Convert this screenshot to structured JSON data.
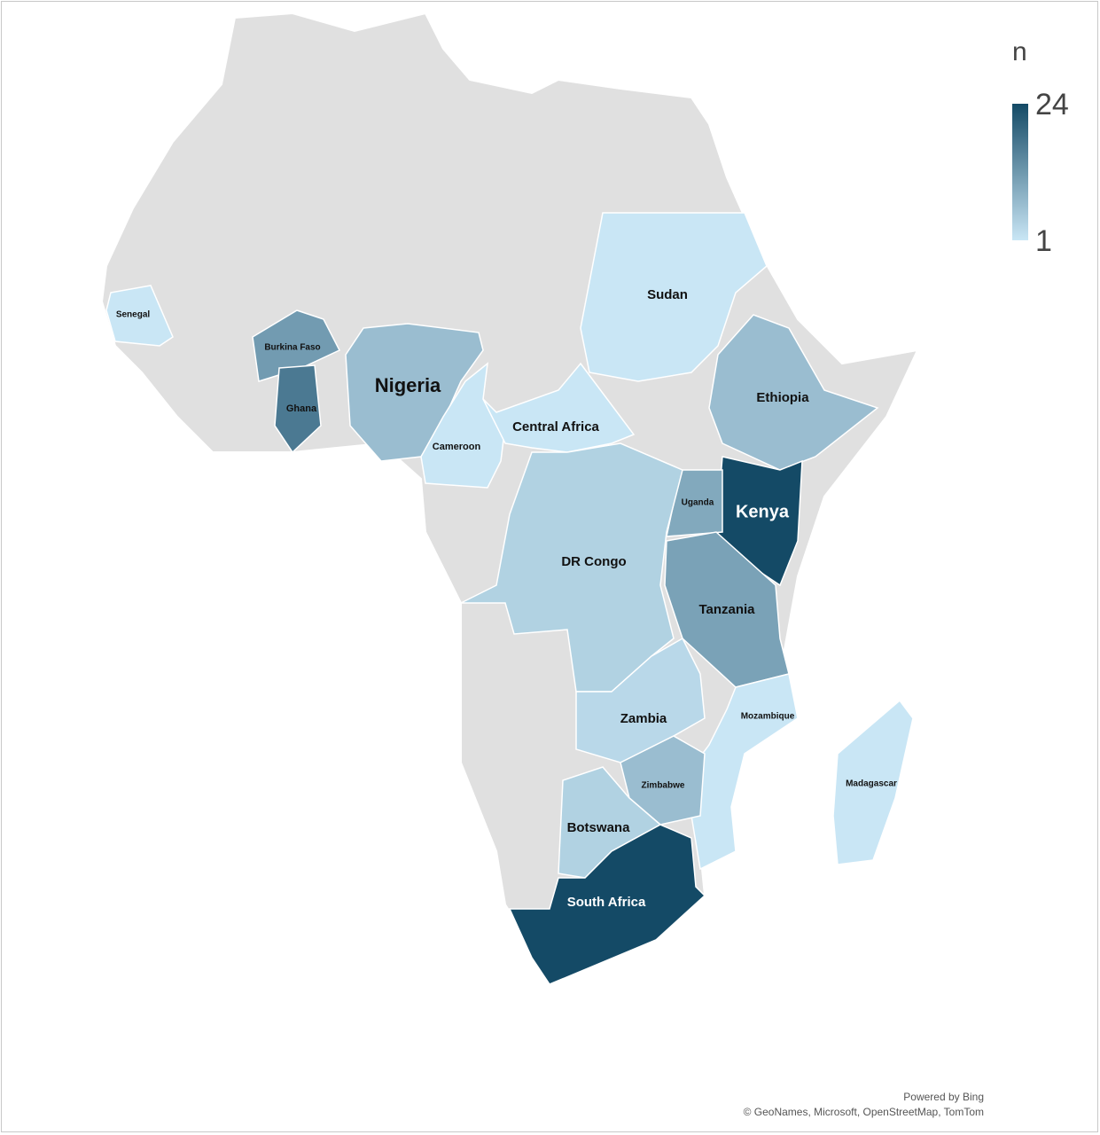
{
  "map_data": {
    "type": "choropleth",
    "legend": {
      "title": "n",
      "min": 1,
      "max": 24
    },
    "countries": [
      {
        "name": "Senegal",
        "value": 1
      },
      {
        "name": "Burkina Faso",
        "value": 12
      },
      {
        "name": "Ghana",
        "value": 17
      },
      {
        "name": "Nigeria",
        "value": 7
      },
      {
        "name": "Cameroon",
        "value": 1
      },
      {
        "name": "Central Africa",
        "value": 1
      },
      {
        "name": "Sudan",
        "value": 1
      },
      {
        "name": "Ethiopia",
        "value": 7
      },
      {
        "name": "Kenya",
        "value": 24
      },
      {
        "name": "Uganda",
        "value": 10
      },
      {
        "name": "Tanzania",
        "value": 11
      },
      {
        "name": "DR Congo",
        "value": 4
      },
      {
        "name": "Zambia",
        "value": 3
      },
      {
        "name": "Mozambique",
        "value": 1
      },
      {
        "name": "Zimbabwe",
        "value": 7
      },
      {
        "name": "Botswana",
        "value": 4
      },
      {
        "name": "South Africa",
        "value": 24
      },
      {
        "name": "Madagascar",
        "value": 1
      }
    ],
    "attribution": [
      "Powered by Bing",
      "© GeoNames, Microsoft, OpenStreetMap, TomTom"
    ]
  }
}
